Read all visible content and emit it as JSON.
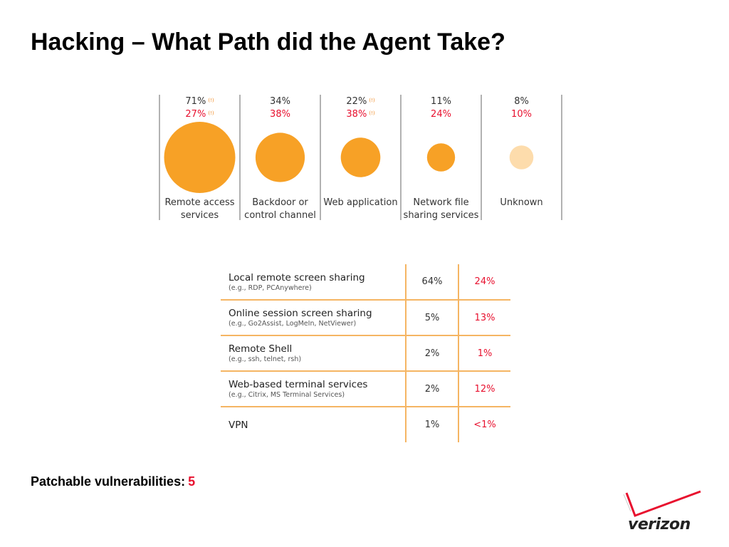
{
  "title": "Hacking – What Path did the Agent Take?",
  "chart_data": {
    "type": "bubble",
    "categories": [
      {
        "label_lines": [
          "Remote access",
          "services"
        ],
        "primary": "71%",
        "primary_marker": "(!)",
        "secondary": "27%",
        "secondary_marker": "(!)",
        "value": 71
      },
      {
        "label_lines": [
          "Backdoor or",
          "control channel"
        ],
        "primary": "34%",
        "primary_marker": "",
        "secondary": "38%",
        "secondary_marker": "",
        "value": 34
      },
      {
        "label_lines": [
          "Web application"
        ],
        "primary": "22%",
        "primary_marker": "(!)",
        "secondary": "38%",
        "secondary_marker": "(!)",
        "value": 22
      },
      {
        "label_lines": [
          "Network file",
          "sharing services"
        ],
        "primary": "11%",
        "primary_marker": "",
        "secondary": "24%",
        "secondary_marker": "",
        "value": 11
      },
      {
        "label_lines": [
          "Unknown"
        ],
        "primary": "8%",
        "primary_marker": "",
        "secondary": "10%",
        "secondary_marker": "",
        "value": 8
      }
    ],
    "colors": {
      "bubble": "#f7a126",
      "bubble_light": "#fddcac",
      "primary_text": "#333333",
      "secondary_text": "#e8102e",
      "marker_text": "#f08a24",
      "divider": "#999999"
    }
  },
  "remote_access_table": {
    "rows": [
      {
        "name": "Local remote screen sharing",
        "example": "(e.g., RDP, PCAnywhere)",
        "primary": "64%",
        "secondary": "24%"
      },
      {
        "name": "Online session screen sharing",
        "example": "(e.g., Go2Assist, LogMeIn, NetViewer)",
        "primary": "5%",
        "secondary": "13%"
      },
      {
        "name": "Remote Shell",
        "example": "(e.g., ssh, telnet, rsh)",
        "primary": "2%",
        "secondary": "1%"
      },
      {
        "name": "Web-based terminal services",
        "example": "(e.g., Citrix, MS Terminal Services)",
        "primary": "2%",
        "secondary": "12%"
      },
      {
        "name": "VPN",
        "example": "",
        "primary": "1%",
        "secondary": "<1%"
      }
    ]
  },
  "footer": {
    "label": "Patchable vulnerabilities:",
    "value": "5"
  },
  "logo": {
    "text": "verizon",
    "check_color": "#e8102e"
  }
}
